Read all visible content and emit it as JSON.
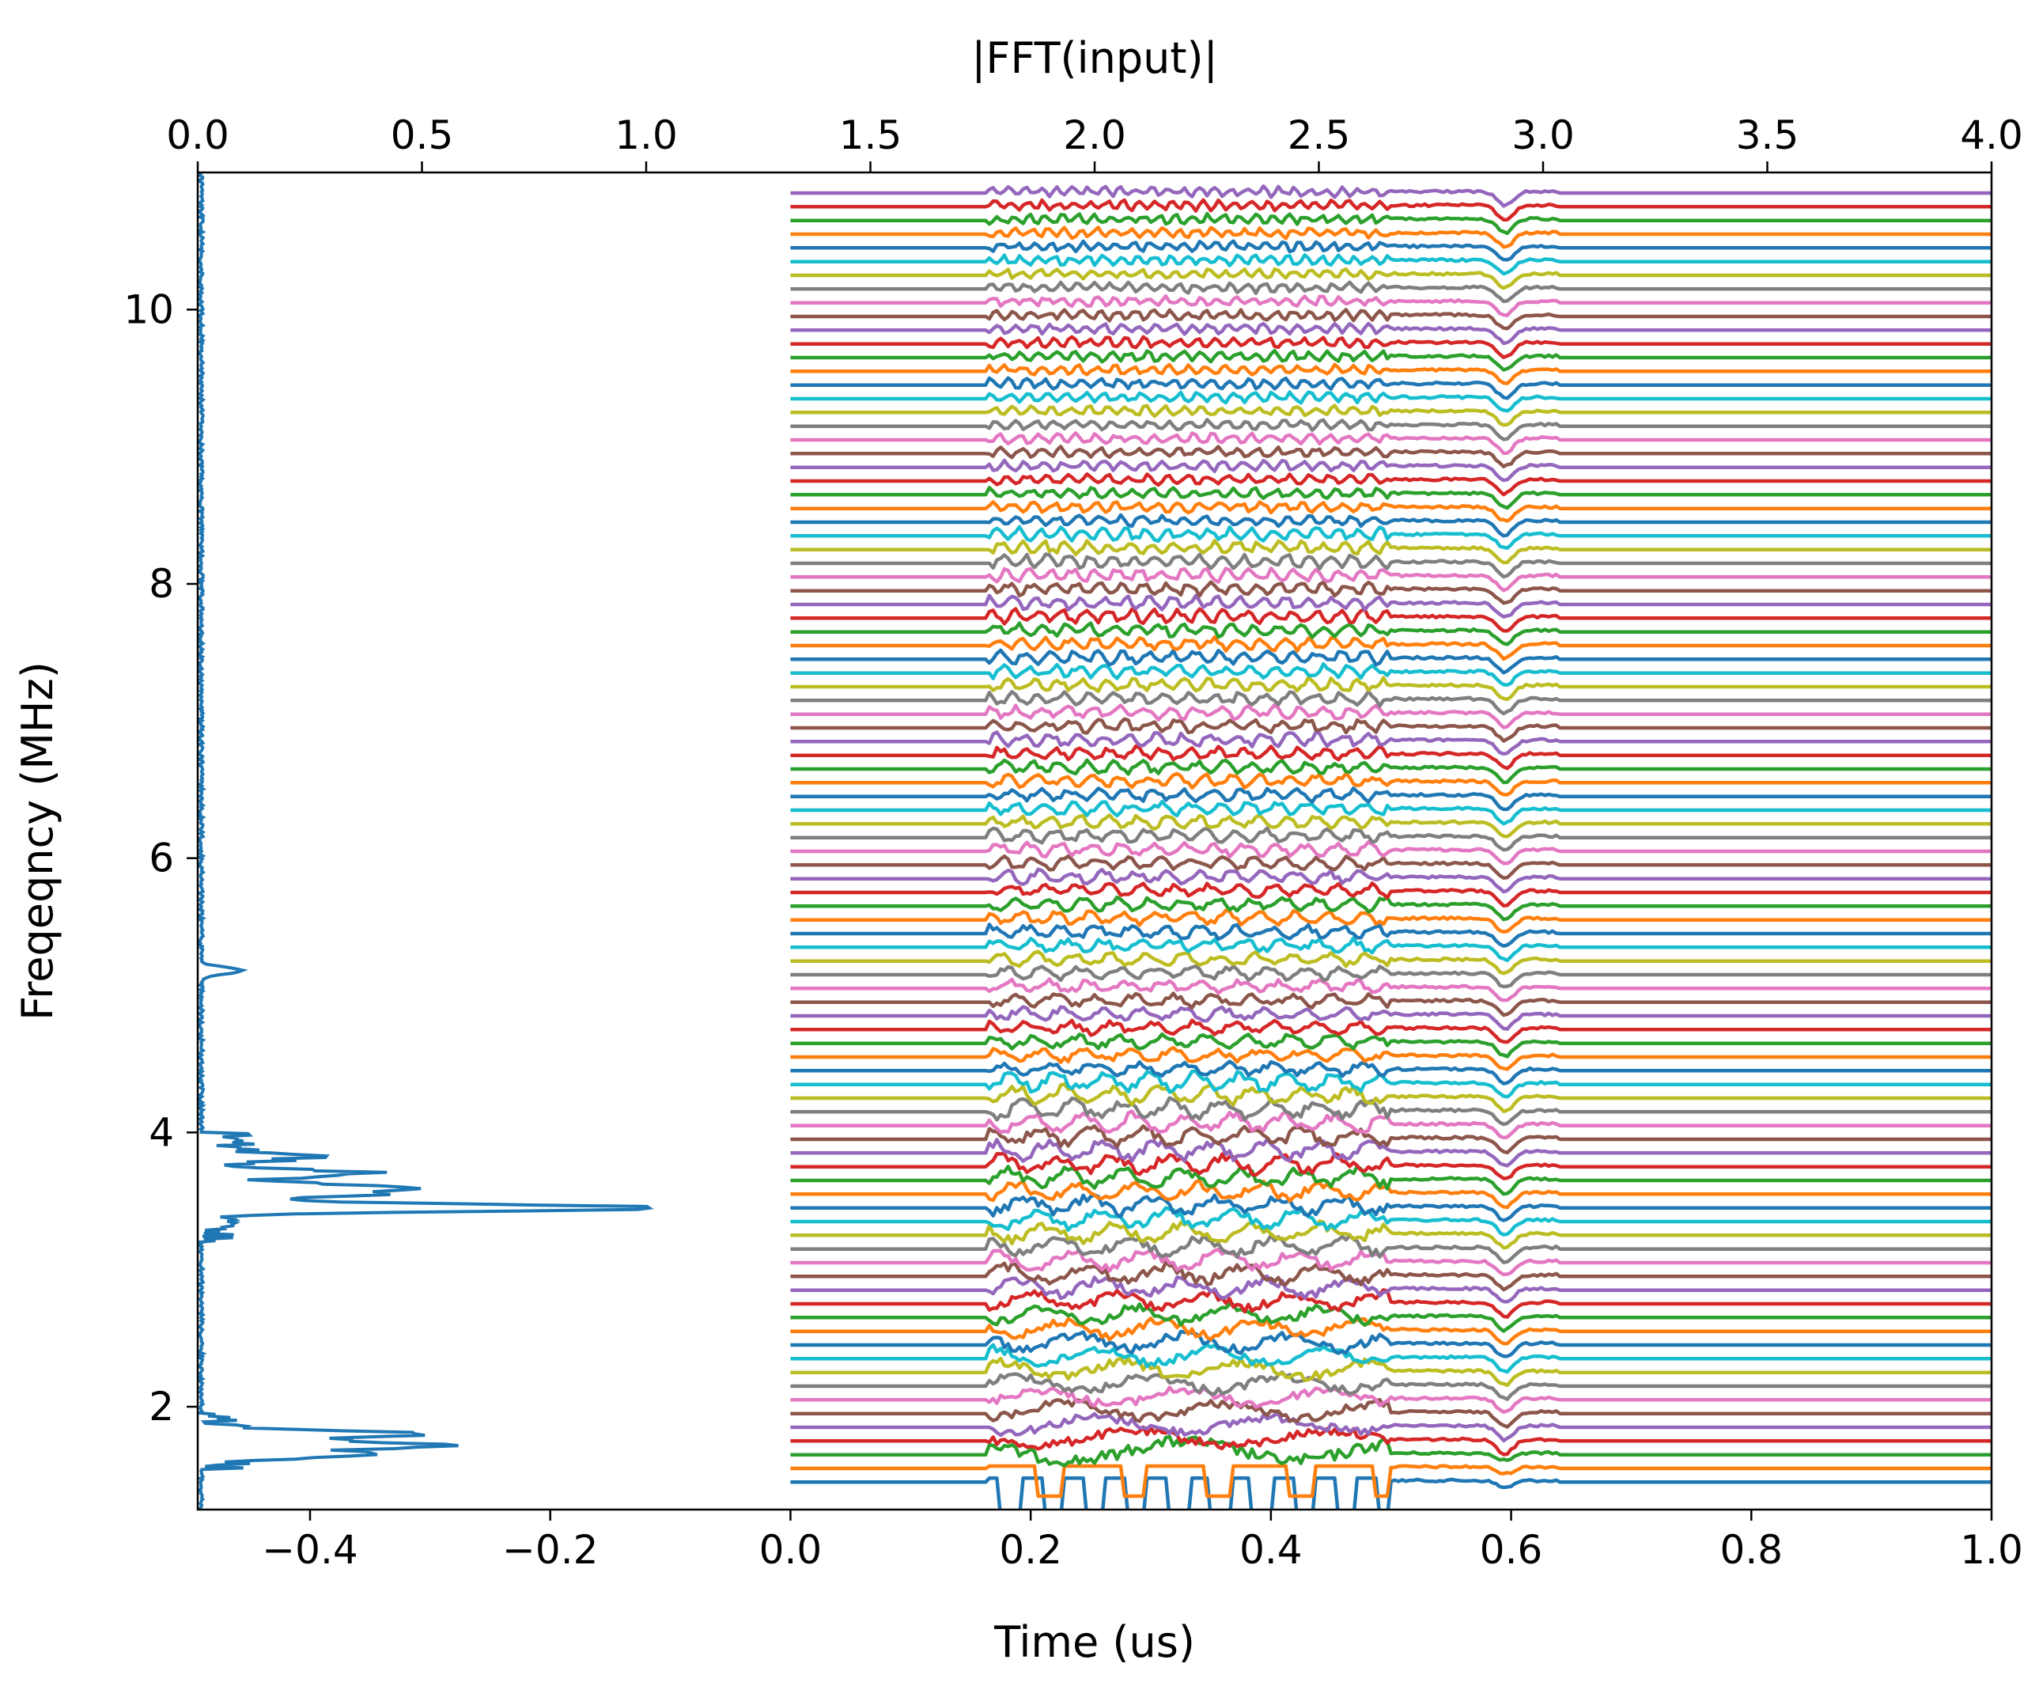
{
  "chart_data": {
    "type": "line",
    "title": "",
    "top_axis": {
      "label": "|FFT(input)|",
      "range": [
        0.0,
        4.0
      ],
      "ticks": [
        "0.0",
        "0.5",
        "1.0",
        "1.5",
        "2.0",
        "2.5",
        "3.0",
        "3.5",
        "4.0"
      ]
    },
    "bottom_axis": {
      "label": "Time (us)",
      "range": [
        -0.4935,
        1.0
      ],
      "ticks": [
        "−0.4",
        "−0.2",
        "0.0",
        "0.2",
        "0.4",
        "0.6",
        "0.8",
        "1.0"
      ],
      "tick_values": [
        -0.4,
        -0.2,
        0.0,
        0.2,
        0.4,
        0.6,
        0.8,
        1.0
      ]
    },
    "left_axis": {
      "label": "Freqeqncy (MHz)",
      "range": [
        1.25,
        11.0
      ],
      "ticks": [
        "2",
        "4",
        "6",
        "8",
        "10"
      ],
      "tick_values": [
        2,
        4,
        6,
        8,
        10
      ]
    },
    "spectrum": {
      "name": "|FFT(input)|",
      "color": "#1f77b4",
      "peaks": [
        {
          "freq_mhz": 1.8,
          "magnitude": 0.45
        },
        {
          "freq_mhz": 1.72,
          "magnitude": 0.49
        },
        {
          "freq_mhz": 1.65,
          "magnitude": 0.3
        },
        {
          "freq_mhz": 3.45,
          "magnitude": 1.0
        },
        {
          "freq_mhz": 3.6,
          "magnitude": 0.4
        },
        {
          "freq_mhz": 3.7,
          "magnitude": 0.32
        },
        {
          "freq_mhz": 3.82,
          "magnitude": 0.18
        },
        {
          "freq_mhz": 3.55,
          "magnitude": 0.27
        },
        {
          "freq_mhz": 5.18,
          "magnitude": 0.09
        }
      ]
    },
    "traces": {
      "description": "Stacked time-domain traces offset by frequency",
      "count": 95,
      "freq_start_mhz": 1.45,
      "freq_step_mhz": 0.1,
      "time_start_us": 0.0,
      "time_end_us": 1.0,
      "pulse_start_us": 0.165,
      "pulse_end_us": 0.5,
      "dip_center_us": 0.595,
      "colors": [
        "#1f77b4",
        "#ff7f0e",
        "#2ca02c",
        "#d62728",
        "#9467bd",
        "#8c564b",
        "#e377c2",
        "#7f7f7f",
        "#bcbd22",
        "#17becf"
      ]
    }
  }
}
